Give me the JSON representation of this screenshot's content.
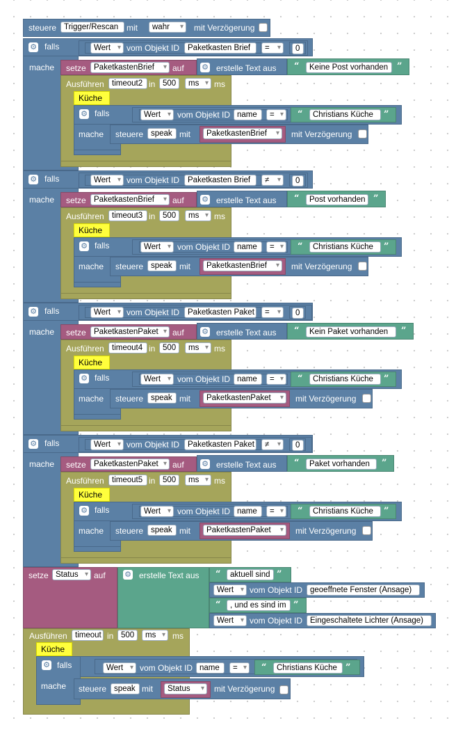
{
  "trigger": {
    "label": "steuere",
    "variable": "Trigger/Rescan",
    "with_label": "mit",
    "value": "wahr",
    "delay_label": "mit Verzögerung"
  },
  "kw": {
    "falls": "falls",
    "mache": "mache",
    "setze": "setze",
    "auf": "auf",
    "create_text": "erstelle Text aus",
    "run_label": "Ausführen",
    "in_label": "in",
    "ms": "ms",
    "steuere": "steuere",
    "mit": "mit",
    "delay": "mit Verzögerung",
    "wert": "Wert",
    "vom_obj": "vom Objekt ID",
    "statement": "Küche"
  },
  "blocks": [
    {
      "object": "Paketkasten Brief",
      "operator": "=",
      "number": "0",
      "var": "PaketkastenBrief",
      "text": "Keine Post vorhanden",
      "timeout": "timeout2",
      "delay_ms": "500",
      "unit": "ms",
      "inner_obj": "name",
      "inner_op": "=",
      "inner_text": "Christians Küche",
      "speak": "speak"
    },
    {
      "object": "Paketkasten Brief",
      "operator": "≠",
      "number": "0",
      "var": "PaketkastenBrief",
      "text": "Post vorhanden",
      "timeout": "timeout3",
      "delay_ms": "500",
      "unit": "ms",
      "inner_obj": "name",
      "inner_op": "=",
      "inner_text": "Christians Küche",
      "speak": "speak"
    },
    {
      "object": "Paketkasten Paket",
      "operator": "=",
      "number": "0",
      "var": "PaketkastenPaket",
      "text": "Kein Paket vorhanden",
      "timeout": "timeout4",
      "delay_ms": "500",
      "unit": "ms",
      "inner_obj": "name",
      "inner_op": "=",
      "inner_text": "Christians Küche",
      "speak": "speak"
    },
    {
      "object": "Paketkasten Paket",
      "operator": "≠",
      "number": "0",
      "var": "PaketkastenPaket",
      "text": "Paket vorhanden",
      "timeout": "timeout5",
      "delay_ms": "500",
      "unit": "ms",
      "inner_obj": "name",
      "inner_op": "=",
      "inner_text": "Christians Küche",
      "speak": "speak"
    }
  ],
  "status": {
    "var": "Status",
    "text1": "aktuell sind",
    "obj1": "geoeffnete Fenster (Ansage)",
    "text2": ", und es sind im",
    "obj2": "Eingeschaltete Lichter (Ansage)"
  },
  "final": {
    "timeout": "timeout",
    "delay_ms": "500",
    "unit": "ms",
    "inner_obj": "name",
    "inner_op": "=",
    "inner_text": "Christians Küche",
    "speak": "speak",
    "var": "Status"
  },
  "colors": {
    "logic_blue": "#5b80a5",
    "variable_purple": "#a55b80",
    "timeout_olive": "#a5a55b",
    "text_green": "#5ba58c",
    "comment_yellow": "#ffff3c"
  }
}
